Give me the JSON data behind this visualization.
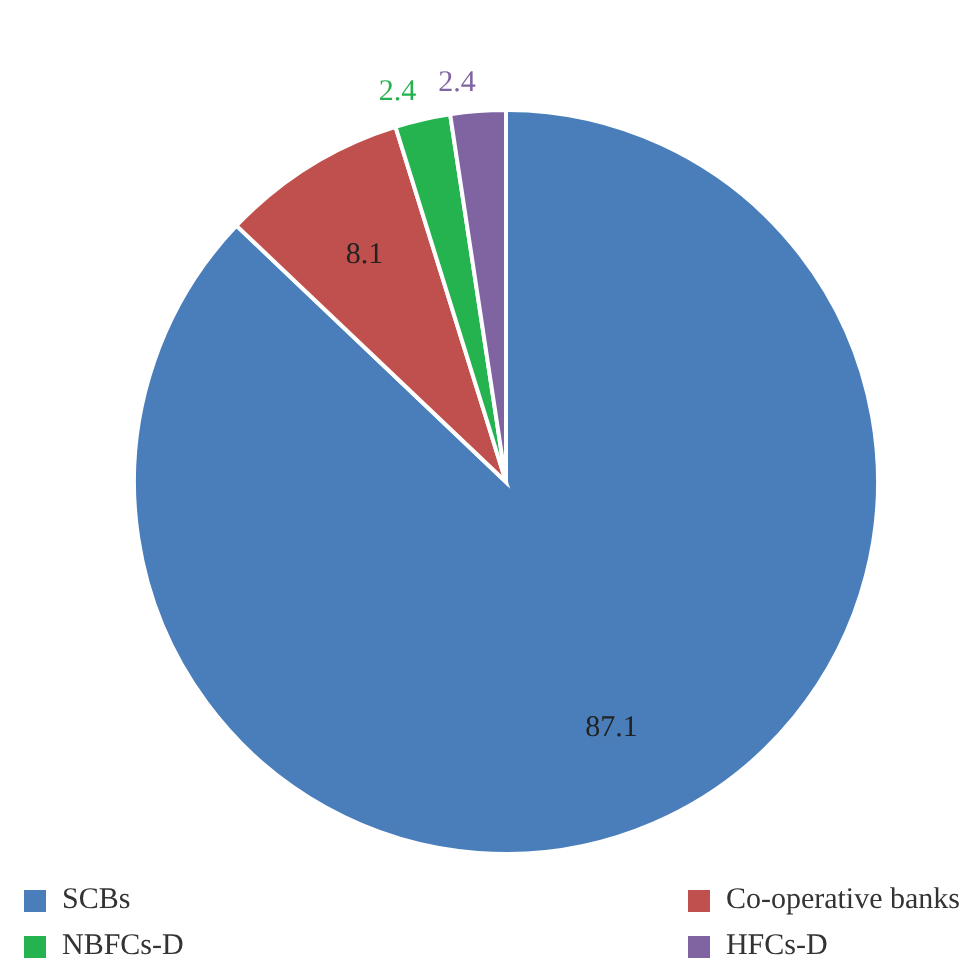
{
  "chart_data": {
    "type": "pie",
    "categories": [
      "SCBs",
      "Co-operative banks",
      "NBFCs-D",
      "HFCs-D"
    ],
    "values": [
      87.1,
      8.1,
      2.4,
      2.4
    ],
    "colors": [
      "#4a7ebb",
      "#c0504d",
      "#25b34f",
      "#8064a2"
    ],
    "data_labels": true,
    "legend": "bottom"
  }
}
